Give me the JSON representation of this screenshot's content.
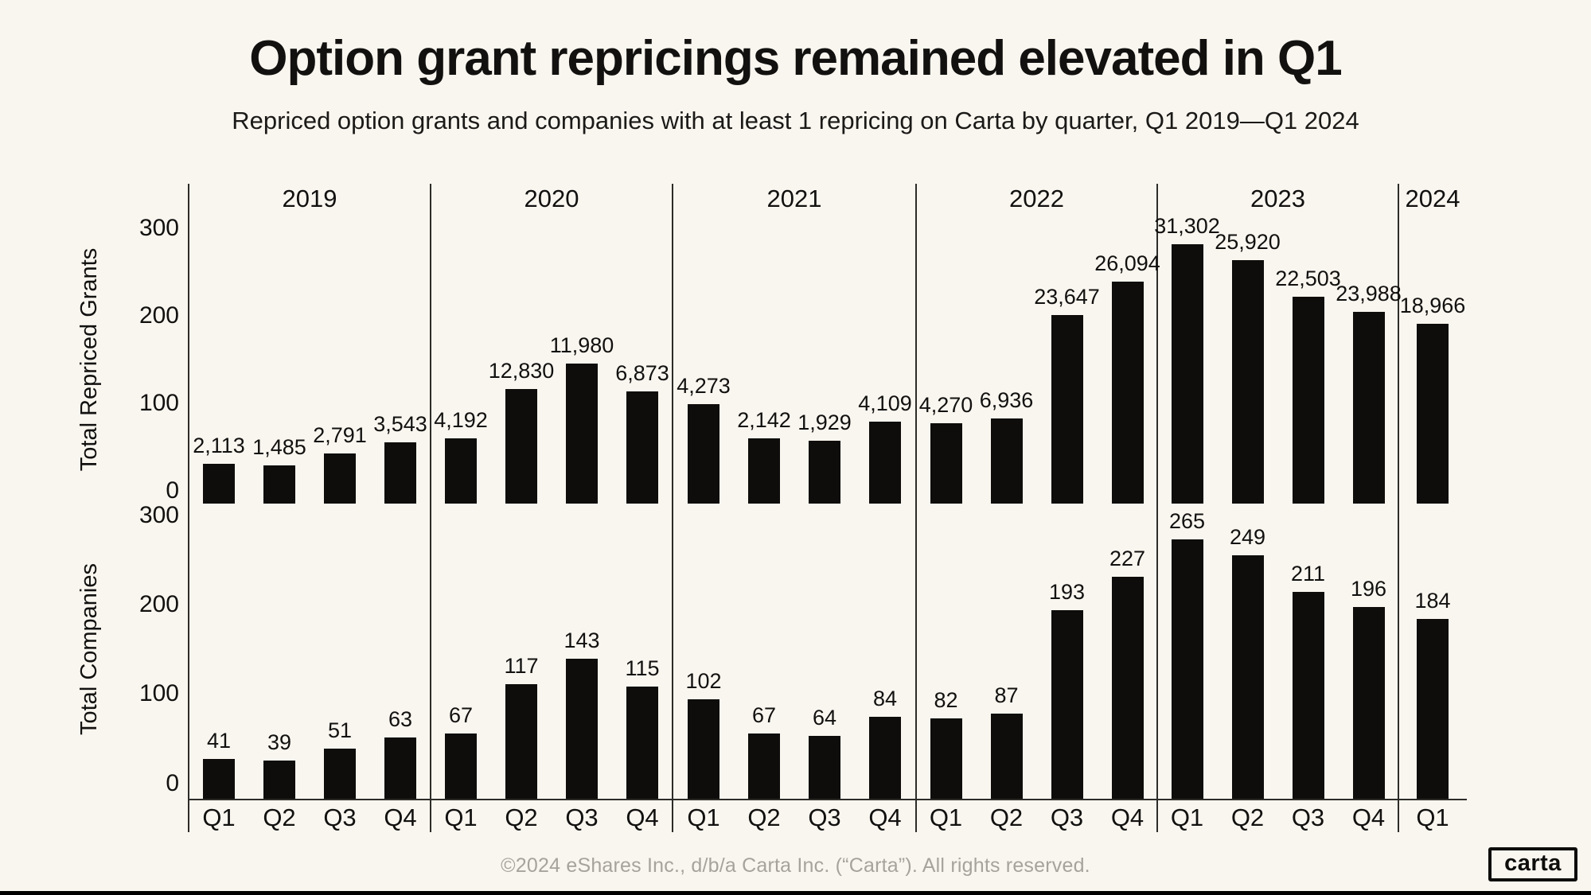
{
  "page": {
    "background": "#f9f6ef",
    "bottom_bar_color": "#000000"
  },
  "chart_data": {
    "type": "bar",
    "title": "Option grant repricings remained elevated in Q1",
    "subtitle": "Repriced option grants and companies with at least 1 repricing on Carta by quarter, Q1 2019—Q1 2024",
    "grid": false,
    "legend": false,
    "ylim": [
      0,
      300
    ],
    "yticks": [
      "300",
      "200",
      "100",
      "0"
    ],
    "years": [
      {
        "label": "2019",
        "quarters": [
          "Q1",
          "Q2",
          "Q3",
          "Q4"
        ]
      },
      {
        "label": "2020",
        "quarters": [
          "Q1",
          "Q2",
          "Q3",
          "Q4"
        ]
      },
      {
        "label": "2021",
        "quarters": [
          "Q1",
          "Q2",
          "Q3",
          "Q4"
        ]
      },
      {
        "label": "2022",
        "quarters": [
          "Q1",
          "Q2",
          "Q3",
          "Q4"
        ]
      },
      {
        "label": "2023",
        "quarters": [
          "Q1",
          "Q2",
          "Q3",
          "Q4"
        ]
      },
      {
        "label": "2024",
        "quarters": [
          "Q1"
        ]
      }
    ],
    "series": [
      {
        "name": "Total Repriced Grants",
        "values": [
          2113,
          1485,
          2791,
          3543,
          4192,
          12830,
          11980,
          6873,
          4273,
          2142,
          1929,
          4109,
          4270,
          6936,
          23647,
          26094,
          31302,
          25920,
          22503,
          23988,
          18966
        ],
        "labels": [
          "2,113",
          "1,485",
          "2,791",
          "3,543",
          "4,192",
          "12,830",
          "11,980",
          "6,873",
          "4,273",
          "2,142",
          "1,929",
          "4,109",
          "4,270",
          "6,936",
          "23,647",
          "26,094",
          "31,302",
          "25,920",
          "22,503",
          "23,988",
          "18,966"
        ]
      },
      {
        "name": "Total Companies",
        "values": [
          41,
          39,
          51,
          63,
          67,
          117,
          143,
          115,
          102,
          67,
          64,
          84,
          82,
          87,
          193,
          227,
          265,
          249,
          211,
          196,
          184
        ],
        "labels": [
          "41",
          "39",
          "51",
          "63",
          "67",
          "117",
          "143",
          "115",
          "102",
          "67",
          "64",
          "84",
          "82",
          "87",
          "193",
          "227",
          "265",
          "249",
          "211",
          "196",
          "184"
        ]
      }
    ],
    "bar_color": "#0e0d0b",
    "axis_color": "#2e2c29"
  },
  "footer": {
    "text": "©2024 eShares Inc., d/b/a Carta Inc. (“Carta”). All rights reserved."
  },
  "logo": {
    "text": "carta"
  }
}
